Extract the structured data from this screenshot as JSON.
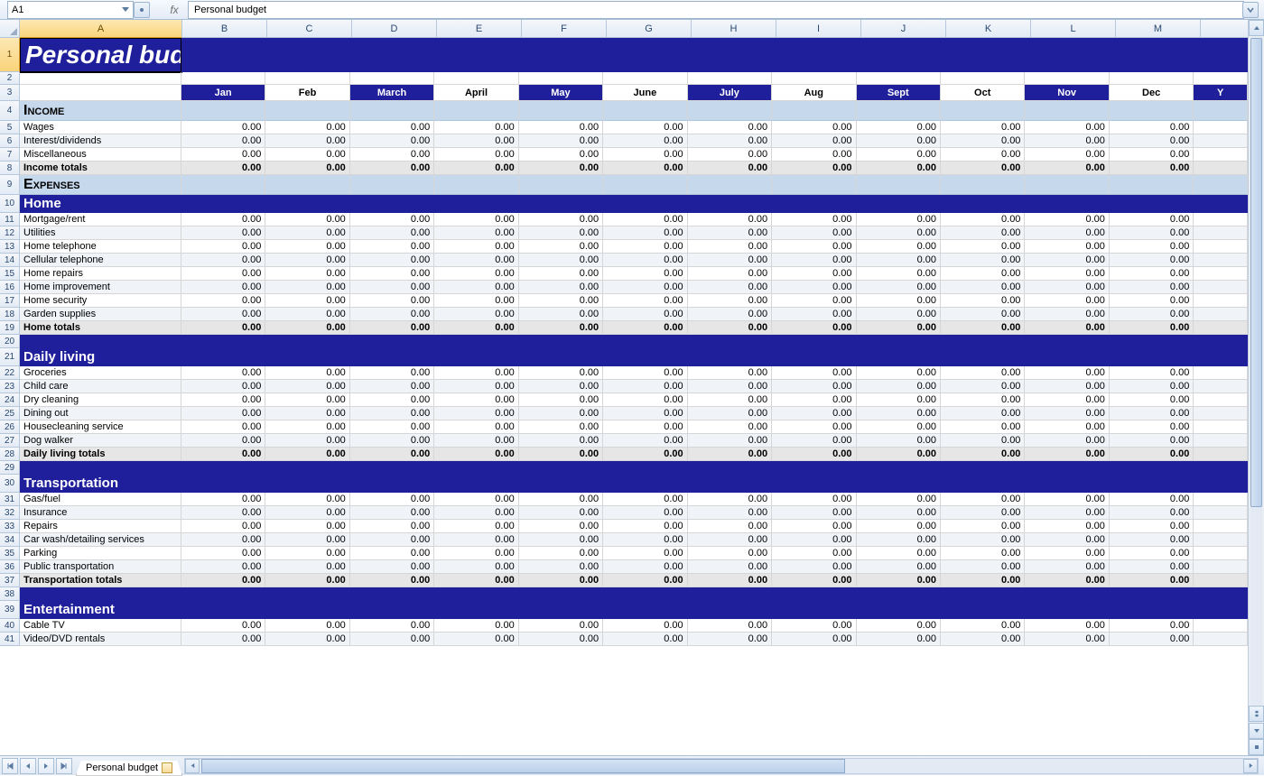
{
  "nameBox": "A1",
  "formulaBar": "Personal budget",
  "sheetTab": "Personal budget",
  "title": "Personal budget",
  "columns": {
    "letters": [
      "A",
      "B",
      "C",
      "D",
      "E",
      "F",
      "G",
      "H",
      "I",
      "J",
      "K",
      "L",
      "M"
    ],
    "widthA": 180,
    "widthMonth": 94,
    "lastColLabel": "Y"
  },
  "months": [
    "Jan",
    "Feb",
    "March",
    "April",
    "May",
    "June",
    "July",
    "Aug",
    "Sept",
    "Oct",
    "Nov",
    "Dec"
  ],
  "sections": [
    {
      "type": "title",
      "height": 38
    },
    {
      "type": "empty",
      "height": 14
    },
    {
      "type": "monthHeader",
      "height": 18
    },
    {
      "type": "sec-lightblue",
      "label": "Income",
      "height": 22
    },
    {
      "type": "item",
      "label": "Wages",
      "alt": false
    },
    {
      "type": "item",
      "label": "Interest/dividends",
      "alt": true
    },
    {
      "type": "item",
      "label": "Miscellaneous",
      "alt": false
    },
    {
      "type": "total",
      "label": "Income totals"
    },
    {
      "type": "sec-lightblue",
      "label": "Expenses",
      "height": 22
    },
    {
      "type": "sec-darkblue",
      "label": "Home",
      "height": 20
    },
    {
      "type": "item",
      "label": "Mortgage/rent",
      "alt": false
    },
    {
      "type": "item",
      "label": "Utilities",
      "alt": true
    },
    {
      "type": "item",
      "label": "Home telephone",
      "alt": false
    },
    {
      "type": "item",
      "label": "Cellular telephone",
      "alt": true
    },
    {
      "type": "item",
      "label": "Home repairs",
      "alt": false
    },
    {
      "type": "item",
      "label": "Home improvement",
      "alt": true
    },
    {
      "type": "item",
      "label": "Home security",
      "alt": false
    },
    {
      "type": "item",
      "label": "Garden supplies",
      "alt": true
    },
    {
      "type": "total",
      "label": "Home totals"
    },
    {
      "type": "blank",
      "height": 15
    },
    {
      "type": "sec-darkblue",
      "label": "Daily living",
      "height": 20
    },
    {
      "type": "item",
      "label": "Groceries",
      "alt": false
    },
    {
      "type": "item",
      "label": "Child care",
      "alt": true
    },
    {
      "type": "item",
      "label": "Dry cleaning",
      "alt": false
    },
    {
      "type": "item",
      "label": "Dining out",
      "alt": true
    },
    {
      "type": "item",
      "label": "Housecleaning service",
      "alt": false
    },
    {
      "type": "item",
      "label": "Dog walker",
      "alt": true
    },
    {
      "type": "total",
      "label": "Daily living totals"
    },
    {
      "type": "blank",
      "height": 15
    },
    {
      "type": "sec-darkblue",
      "label": "Transportation",
      "height": 20
    },
    {
      "type": "item",
      "label": "Gas/fuel",
      "alt": false
    },
    {
      "type": "item",
      "label": "Insurance",
      "alt": true
    },
    {
      "type": "item",
      "label": "Repairs",
      "alt": false
    },
    {
      "type": "item",
      "label": "Car wash/detailing services",
      "alt": true
    },
    {
      "type": "item",
      "label": "Parking",
      "alt": false
    },
    {
      "type": "item",
      "label": "Public transportation",
      "alt": true
    },
    {
      "type": "total",
      "label": "Transportation totals"
    },
    {
      "type": "blank",
      "height": 15
    },
    {
      "type": "sec-darkblue",
      "label": "Entertainment",
      "height": 20
    },
    {
      "type": "item",
      "label": "Cable TV",
      "alt": false
    },
    {
      "type": "item",
      "label": "Video/DVD rentals",
      "alt": true
    }
  ],
  "defaultValue": "0.00",
  "rowHeightItem": 15,
  "colors": {
    "darkblue": "#1f1f9c",
    "lightblue": "#c6d9ec",
    "altRow": "#f0f4f9",
    "totalRow": "#e6e6e6",
    "gridBorder": "#d6d6d6",
    "headerGradTop": "#f4f7fb",
    "headerGradBot": "#e3ebf5"
  }
}
